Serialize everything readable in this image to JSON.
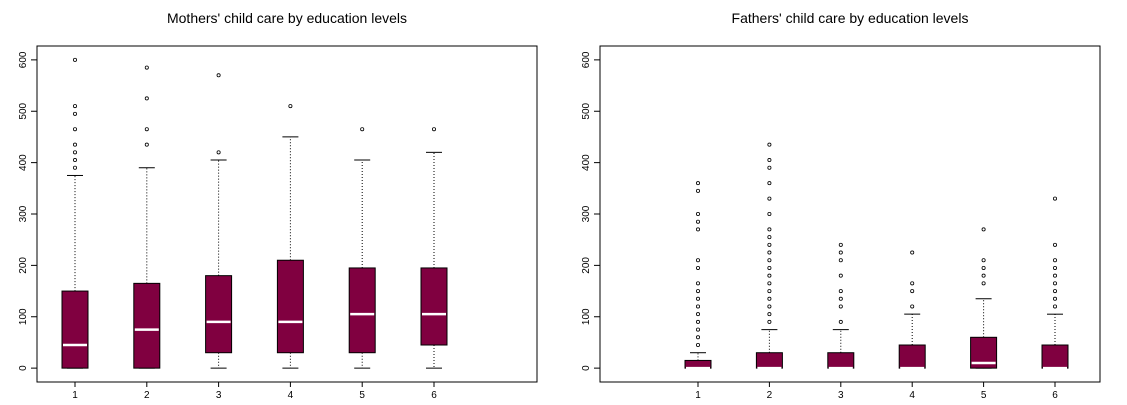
{
  "chart_data": [
    {
      "type": "boxplot",
      "title": "Mothers' child care by education levels",
      "color": "#800040",
      "categories": [
        "1",
        "2",
        "3",
        "4",
        "5",
        "6"
      ],
      "ylim": [
        -27,
        627
      ],
      "yticks": [
        0,
        100,
        200,
        300,
        400,
        500,
        600
      ],
      "boxes": [
        {
          "min": 0,
          "q1": 0,
          "median": 45,
          "q3": 150,
          "max": 375,
          "outliers": [
            390,
            405,
            420,
            435,
            465,
            495,
            510,
            600
          ]
        },
        {
          "min": 0,
          "q1": 0,
          "median": 75,
          "q3": 165,
          "max": 390,
          "outliers": [
            435,
            465,
            525,
            585
          ]
        },
        {
          "min": 0,
          "q1": 30,
          "median": 90,
          "q3": 180,
          "max": 405,
          "outliers": [
            420,
            570
          ]
        },
        {
          "min": 0,
          "q1": 30,
          "median": 90,
          "q3": 210,
          "max": 450,
          "outliers": [
            510
          ]
        },
        {
          "min": 0,
          "q1": 30,
          "median": 105,
          "q3": 195,
          "max": 405,
          "outliers": [
            465
          ]
        },
        {
          "min": 0,
          "q1": 45,
          "median": 105,
          "q3": 195,
          "max": 420,
          "outliers": [
            465
          ]
        }
      ]
    },
    {
      "type": "boxplot",
      "title": "Fathers' child care by education levels",
      "color": "#800040",
      "categories": [
        "1",
        "2",
        "3",
        "4",
        "5",
        "6"
      ],
      "ylim": [
        -27,
        627
      ],
      "yticks": [
        0,
        100,
        200,
        300,
        400,
        500,
        600
      ],
      "boxes": [
        {
          "min": 0,
          "q1": 0,
          "median": 0,
          "q3": 15,
          "max": 30,
          "outliers": [
            45,
            60,
            75,
            90,
            105,
            120,
            135,
            150,
            165,
            195,
            210,
            270,
            285,
            300,
            345,
            360
          ]
        },
        {
          "min": 0,
          "q1": 0,
          "median": 0,
          "q3": 30,
          "max": 75,
          "outliers": [
            90,
            105,
            120,
            135,
            150,
            165,
            180,
            195,
            210,
            225,
            240,
            255,
            270,
            300,
            330,
            360,
            390,
            405,
            435
          ]
        },
        {
          "min": 0,
          "q1": 0,
          "median": 0,
          "q3": 30,
          "max": 75,
          "outliers": [
            90,
            120,
            135,
            150,
            180,
            210,
            225,
            240
          ]
        },
        {
          "min": 0,
          "q1": 0,
          "median": 0,
          "q3": 45,
          "max": 105,
          "outliers": [
            120,
            150,
            165,
            225
          ]
        },
        {
          "min": 0,
          "q1": 0,
          "median": 10,
          "q3": 60,
          "max": 135,
          "outliers": [
            165,
            180,
            195,
            210,
            270
          ]
        },
        {
          "min": 0,
          "q1": 0,
          "median": 0,
          "q3": 45,
          "max": 105,
          "outliers": [
            120,
            135,
            150,
            165,
            180,
            195,
            210,
            240,
            330
          ]
        }
      ]
    }
  ]
}
